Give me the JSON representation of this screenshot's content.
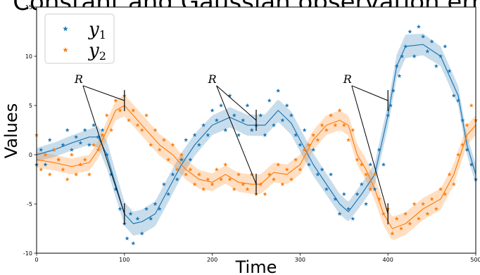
{
  "chart_data": {
    "type": "scatter",
    "title": "Constant and Gaussian observation error",
    "xlabel": "Time",
    "ylabel": "Values",
    "xlim": [
      0,
      500
    ],
    "ylim": [
      -10,
      15
    ],
    "xticks": [
      0,
      100,
      200,
      300,
      400,
      500
    ],
    "yticks": [
      -10,
      -5,
      0,
      5,
      10,
      15
    ],
    "legend_position": "top-left",
    "series": [
      {
        "name": "y",
        "subscript": "1",
        "color": "#1f77b4",
        "marker": "star",
        "mean_curve": [
          [
            0,
            0
          ],
          [
            20,
            0.5
          ],
          [
            40,
            1.2
          ],
          [
            60,
            1.8
          ],
          [
            70,
            1.8
          ],
          [
            80,
            0
          ],
          [
            90,
            -3
          ],
          [
            100,
            -6
          ],
          [
            110,
            -7
          ],
          [
            120,
            -6.8
          ],
          [
            135,
            -6
          ],
          [
            150,
            -3.5
          ],
          [
            165,
            -1
          ],
          [
            180,
            1
          ],
          [
            200,
            3
          ],
          [
            220,
            3.8
          ],
          [
            240,
            3
          ],
          [
            260,
            3
          ],
          [
            275,
            4.5
          ],
          [
            290,
            3.2
          ],
          [
            300,
            1.5
          ],
          [
            315,
            -1
          ],
          [
            330,
            -3
          ],
          [
            345,
            -5
          ],
          [
            355,
            -5.8
          ],
          [
            370,
            -4
          ],
          [
            385,
            -2
          ],
          [
            400,
            4
          ],
          [
            410,
            9
          ],
          [
            420,
            11
          ],
          [
            440,
            11.2
          ],
          [
            460,
            10
          ],
          [
            480,
            6
          ],
          [
            490,
            1
          ],
          [
            500,
            -2
          ]
        ],
        "band_halfwidth": [
          [
            0,
            0.7
          ],
          [
            60,
            0.8
          ],
          [
            80,
            1.4
          ],
          [
            100,
            1.2
          ],
          [
            150,
            1.3
          ],
          [
            200,
            1
          ],
          [
            260,
            1.1
          ],
          [
            300,
            1.2
          ],
          [
            355,
            1
          ],
          [
            400,
            1.2
          ],
          [
            420,
            1.2
          ],
          [
            460,
            1
          ],
          [
            500,
            1
          ]
        ],
        "points": [
          [
            0,
            -1
          ],
          [
            5,
            0.5
          ],
          [
            10,
            -1
          ],
          [
            15,
            1.5
          ],
          [
            20,
            0.5
          ],
          [
            25,
            -0.5
          ],
          [
            30,
            1
          ],
          [
            35,
            2.5
          ],
          [
            40,
            0.5
          ],
          [
            45,
            1.8
          ],
          [
            50,
            1.2
          ],
          [
            55,
            2.5
          ],
          [
            60,
            1
          ],
          [
            65,
            3
          ],
          [
            70,
            1.8
          ],
          [
            75,
            2.5
          ],
          [
            80,
            0
          ],
          [
            85,
            -2
          ],
          [
            90,
            -3.5
          ],
          [
            95,
            -5.5
          ],
          [
            100,
            -7
          ],
          [
            103,
            -8.5
          ],
          [
            107,
            -6
          ],
          [
            110,
            -9
          ],
          [
            115,
            -6.5
          ],
          [
            120,
            -8
          ],
          [
            125,
            -5.5
          ],
          [
            130,
            -6.5
          ],
          [
            135,
            -5
          ],
          [
            140,
            -5.5
          ],
          [
            145,
            -3
          ],
          [
            150,
            -4
          ],
          [
            155,
            -2
          ],
          [
            160,
            -2.5
          ],
          [
            165,
            -0.5
          ],
          [
            170,
            1.5
          ],
          [
            175,
            -0.5
          ],
          [
            180,
            2
          ],
          [
            185,
            1
          ],
          [
            190,
            3
          ],
          [
            195,
            2
          ],
          [
            200,
            4.5
          ],
          [
            205,
            3.5
          ],
          [
            210,
            5
          ],
          [
            215,
            2.5
          ],
          [
            220,
            6
          ],
          [
            225,
            4
          ],
          [
            230,
            2
          ],
          [
            235,
            3.5
          ],
          [
            240,
            5
          ],
          [
            245,
            2.5
          ],
          [
            250,
            3
          ],
          [
            255,
            4
          ],
          [
            260,
            2
          ],
          [
            265,
            5.5
          ],
          [
            270,
            3
          ],
          [
            275,
            6.5
          ],
          [
            280,
            3.5
          ],
          [
            285,
            5
          ],
          [
            290,
            4
          ],
          [
            295,
            2
          ],
          [
            300,
            1
          ],
          [
            305,
            2.5
          ],
          [
            310,
            -1
          ],
          [
            315,
            0.5
          ],
          [
            320,
            -2
          ],
          [
            325,
            -1.5
          ],
          [
            330,
            -3.5
          ],
          [
            335,
            -2
          ],
          [
            340,
            -4.5
          ],
          [
            345,
            -6
          ],
          [
            350,
            -4
          ],
          [
            355,
            -5.5
          ],
          [
            360,
            -6.5
          ],
          [
            365,
            -4
          ],
          [
            370,
            -3
          ],
          [
            375,
            -5
          ],
          [
            380,
            -1
          ],
          [
            385,
            -3.5
          ],
          [
            390,
            0.5
          ],
          [
            395,
            -1
          ],
          [
            400,
            4
          ],
          [
            403,
            5
          ],
          [
            406,
            6.5
          ],
          [
            410,
            9
          ],
          [
            413,
            8
          ],
          [
            416,
            10
          ],
          [
            420,
            11
          ],
          [
            425,
            12.5
          ],
          [
            430,
            10
          ],
          [
            435,
            13
          ],
          [
            440,
            12
          ],
          [
            445,
            10.5
          ],
          [
            450,
            11.5
          ],
          [
            455,
            9
          ],
          [
            460,
            10
          ],
          [
            465,
            11
          ],
          [
            470,
            8.5
          ],
          [
            475,
            6
          ],
          [
            480,
            5.5
          ],
          [
            485,
            3.5
          ],
          [
            490,
            0.5
          ],
          [
            495,
            -1
          ],
          [
            500,
            -2.5
          ]
        ]
      },
      {
        "name": "y",
        "subscript": "2",
        "color": "#ff7f0e",
        "marker": "star",
        "mean_curve": [
          [
            0,
            -0.5
          ],
          [
            20,
            -0.8
          ],
          [
            40,
            -1.2
          ],
          [
            60,
            -0.8
          ],
          [
            70,
            0.5
          ],
          [
            80,
            2.5
          ],
          [
            90,
            4.5
          ],
          [
            100,
            5
          ],
          [
            110,
            4
          ],
          [
            125,
            2.5
          ],
          [
            140,
            1
          ],
          [
            155,
            0
          ],
          [
            170,
            -1.5
          ],
          [
            185,
            -2.5
          ],
          [
            200,
            -2.8
          ],
          [
            215,
            -2
          ],
          [
            230,
            -2.8
          ],
          [
            245,
            -3
          ],
          [
            255,
            -3
          ],
          [
            270,
            -1.8
          ],
          [
            285,
            -2
          ],
          [
            300,
            -1
          ],
          [
            315,
            1.5
          ],
          [
            330,
            3
          ],
          [
            345,
            3.5
          ],
          [
            355,
            3
          ],
          [
            365,
            0
          ],
          [
            375,
            -1.5
          ],
          [
            385,
            -3.5
          ],
          [
            395,
            -6
          ],
          [
            405,
            -7.5
          ],
          [
            420,
            -7
          ],
          [
            440,
            -5.5
          ],
          [
            460,
            -4.5
          ],
          [
            475,
            -2
          ],
          [
            490,
            2
          ],
          [
            500,
            3
          ]
        ],
        "band_halfwidth": [
          [
            0,
            0.8
          ],
          [
            60,
            0.8
          ],
          [
            100,
            1.1
          ],
          [
            150,
            1.1
          ],
          [
            200,
            0.9
          ],
          [
            250,
            1
          ],
          [
            300,
            1
          ],
          [
            350,
            1
          ],
          [
            400,
            1.2
          ],
          [
            450,
            1.1
          ],
          [
            500,
            1
          ]
        ],
        "points": [
          [
            0,
            2
          ],
          [
            5,
            -1.5
          ],
          [
            10,
            0
          ],
          [
            15,
            -2
          ],
          [
            20,
            0.5
          ],
          [
            25,
            -0.5
          ],
          [
            30,
            -1.5
          ],
          [
            35,
            -2.5
          ],
          [
            40,
            0
          ],
          [
            45,
            -2
          ],
          [
            50,
            -1
          ],
          [
            55,
            -0.5
          ],
          [
            60,
            -2
          ],
          [
            65,
            1
          ],
          [
            70,
            0.5
          ],
          [
            75,
            2
          ],
          [
            80,
            4
          ],
          [
            85,
            2.5
          ],
          [
            90,
            5.5
          ],
          [
            95,
            4.5
          ],
          [
            100,
            6
          ],
          [
            105,
            3.5
          ],
          [
            110,
            4.5
          ],
          [
            115,
            3
          ],
          [
            120,
            2.5
          ],
          [
            125,
            4
          ],
          [
            130,
            1
          ],
          [
            135,
            2.5
          ],
          [
            140,
            0.5
          ],
          [
            145,
            1.5
          ],
          [
            150,
            -0.5
          ],
          [
            155,
            1
          ],
          [
            160,
            -1.5
          ],
          [
            165,
            0
          ],
          [
            170,
            -2
          ],
          [
            175,
            -1.5
          ],
          [
            180,
            -3
          ],
          [
            185,
            -2
          ],
          [
            190,
            -3.5
          ],
          [
            195,
            -2.5
          ],
          [
            200,
            -3
          ],
          [
            205,
            -1.5
          ],
          [
            210,
            -2.5
          ],
          [
            215,
            -1
          ],
          [
            220,
            -2.5
          ],
          [
            225,
            -3.5
          ],
          [
            230,
            -2
          ],
          [
            235,
            -3
          ],
          [
            240,
            -3.5
          ],
          [
            245,
            -2
          ],
          [
            250,
            -4
          ],
          [
            255,
            -3
          ],
          [
            260,
            -4
          ],
          [
            265,
            -2
          ],
          [
            270,
            -2.5
          ],
          [
            275,
            -1
          ],
          [
            280,
            -3
          ],
          [
            285,
            -1.5
          ],
          [
            290,
            -2.5
          ],
          [
            295,
            -0.5
          ],
          [
            300,
            -1.5
          ],
          [
            305,
            0.5
          ],
          [
            310,
            1
          ],
          [
            315,
            2
          ],
          [
            320,
            1.5
          ],
          [
            325,
            3
          ],
          [
            330,
            2.5
          ],
          [
            335,
            4
          ],
          [
            340,
            3
          ],
          [
            345,
            4.5
          ],
          [
            350,
            3
          ],
          [
            355,
            1.5
          ],
          [
            360,
            2.5
          ],
          [
            365,
            -0.5
          ],
          [
            370,
            -1
          ],
          [
            375,
            -2
          ],
          [
            380,
            -3.5
          ],
          [
            385,
            -2
          ],
          [
            390,
            -4.5
          ],
          [
            395,
            -6
          ],
          [
            400,
            -5.5
          ],
          [
            405,
            -8
          ],
          [
            410,
            -6.5
          ],
          [
            415,
            -7.5
          ],
          [
            420,
            -6
          ],
          [
            425,
            -7
          ],
          [
            430,
            -5
          ],
          [
            435,
            -6.5
          ],
          [
            440,
            -5
          ],
          [
            445,
            -6
          ],
          [
            450,
            -4.5
          ],
          [
            455,
            -5.5
          ],
          [
            460,
            -3.5
          ],
          [
            465,
            -4
          ],
          [
            470,
            -2
          ],
          [
            475,
            -3
          ],
          [
            480,
            0
          ],
          [
            485,
            1
          ],
          [
            490,
            3
          ],
          [
            495,
            5
          ],
          [
            500,
            3.5
          ]
        ]
      }
    ],
    "annotations": [
      {
        "label": "R",
        "text_at": [
          48,
          7.3
        ],
        "markers": [
          [
            100,
            5.5
          ],
          [
            100,
            -6
          ]
        ]
      },
      {
        "label": "R",
        "text_at": [
          200,
          7.3
        ],
        "markers": [
          [
            250,
            3.5
          ],
          [
            250,
            -3
          ]
        ]
      },
      {
        "label": "R",
        "text_at": [
          354,
          7.3
        ],
        "markers": [
          [
            400,
            5.5
          ],
          [
            400,
            -6
          ]
        ]
      }
    ]
  }
}
